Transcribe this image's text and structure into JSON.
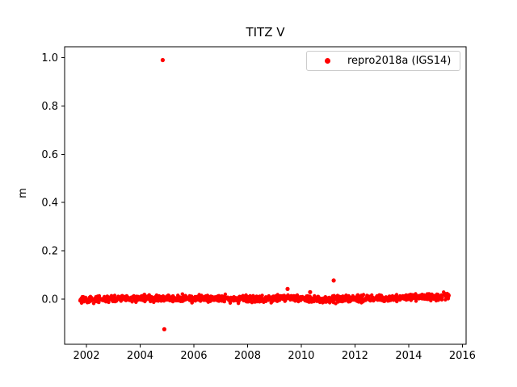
{
  "figure": {
    "title": "TITZ V",
    "ylabel": "m"
  },
  "legend": {
    "label": "repro2018a (IGS14)",
    "marker_color": "#ff0000"
  },
  "chart_data": {
    "type": "scatter",
    "title": "TITZ V",
    "xlabel": "",
    "ylabel": "m",
    "legend_position": "upper right",
    "grid": false,
    "series_name": "repro2018a (IGS14)",
    "marker_color": "#ff0000",
    "xlim": [
      2001.2,
      2016.15
    ],
    "ylim": [
      -0.19,
      1.05
    ],
    "x_ticks": [
      2002,
      2004,
      2006,
      2008,
      2010,
      2012,
      2014,
      2016
    ],
    "x_tick_labels": [
      "2002",
      "2004",
      "2006",
      "2008",
      "2010",
      "2012",
      "2014",
      "2016"
    ],
    "y_ticks": [
      0.0,
      0.2,
      0.4,
      0.6,
      0.8,
      1.0
    ],
    "y_tick_labels": [
      "0.0",
      "0.2",
      "0.4",
      "0.6",
      "0.8",
      "1.0"
    ],
    "band": {
      "description": "dense daily time series hugging zero",
      "x_start": 2001.75,
      "x_end": 2015.52,
      "n_points": 1400,
      "std": 0.0065,
      "clamp": 0.022,
      "seed": 42,
      "mean_points": [
        [
          2001.75,
          -0.004
        ],
        [
          2002.5,
          0.0
        ],
        [
          2003.5,
          0.004
        ],
        [
          2005.0,
          0.003
        ],
        [
          2007.0,
          0.002
        ],
        [
          2008.5,
          0.0
        ],
        [
          2009.5,
          0.006
        ],
        [
          2010.8,
          -0.004
        ],
        [
          2012.0,
          0.002
        ],
        [
          2013.5,
          0.006
        ],
        [
          2015.52,
          0.01
        ]
      ]
    },
    "outliers": [
      [
        2004.84,
        0.99
      ],
      [
        2004.9,
        -0.125
      ],
      [
        2009.49,
        0.042
      ],
      [
        2010.33,
        0.029
      ],
      [
        2011.21,
        0.077
      ]
    ]
  }
}
